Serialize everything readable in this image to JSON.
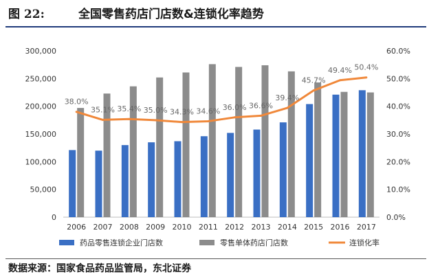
{
  "figure": {
    "label": "图 22:",
    "title": "全国零售药店门店数&连锁化率趋势",
    "source": "数据来源：国家食品药品监管局，东北证券"
  },
  "colors": {
    "chain_bar": "#3a6fc4",
    "total_bar": "#8c8c8c",
    "rate_line": "#f0883a",
    "header_rule": "#1f3a7a"
  },
  "chart_data": {
    "type": "bar",
    "categories": [
      "2006",
      "2007",
      "2008",
      "2009",
      "2010",
      "2011",
      "2012",
      "2013",
      "2014",
      "2015",
      "2016",
      "2017"
    ],
    "series": [
      {
        "name": "药品零售连锁企业门店数",
        "type": "bar",
        "axis": "left",
        "values": [
          121000,
          120000,
          130000,
          135000,
          137000,
          146000,
          152000,
          158000,
          171000,
          204000,
          221000,
          229000
        ]
      },
      {
        "name": "零售单体药店门店数",
        "type": "bar",
        "axis": "left",
        "values": [
          197000,
          223000,
          236000,
          252000,
          261000,
          276000,
          271000,
          274000,
          263000,
          243000,
          226000,
          225000
        ]
      },
      {
        "name": "连锁化率",
        "type": "line",
        "axis": "right",
        "values": [
          38.0,
          35.1,
          35.4,
          35.0,
          34.3,
          34.6,
          36.0,
          36.6,
          39.4,
          45.7,
          49.4,
          50.4
        ],
        "labels": [
          "38.0%",
          "35.1%",
          "35.4%",
          "35.0%",
          "34.3%",
          "34.6%",
          "36.0%",
          "36.6%",
          "39.4%",
          "45.7%",
          "49.4%",
          "50.4%"
        ]
      }
    ],
    "y_left": {
      "min": 0,
      "max": 300000,
      "ticks": [
        "0",
        "50,000",
        "100,000",
        "150,000",
        "200,000",
        "250,000",
        "300,000"
      ]
    },
    "y_right": {
      "min": 0,
      "max": 60,
      "ticks": [
        "0.0%",
        "10.0%",
        "20.0%",
        "30.0%",
        "40.0%",
        "50.0%",
        "60.0%"
      ]
    },
    "grid": false,
    "legend_position": "bottom"
  }
}
